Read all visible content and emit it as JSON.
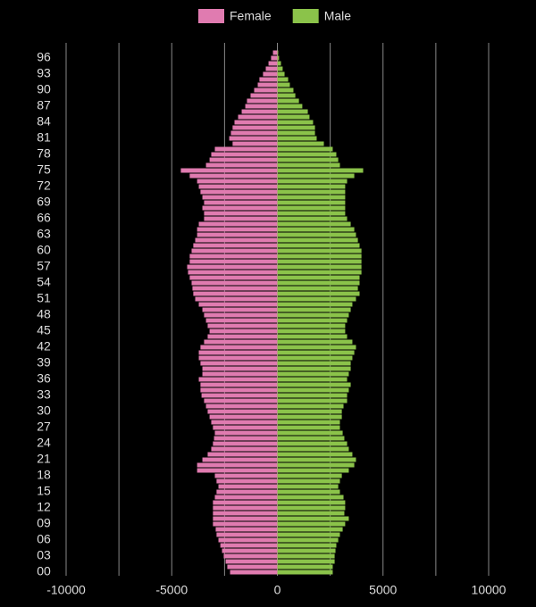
{
  "chart_data": {
    "type": "pyramid",
    "categories": [
      "00",
      null,
      null,
      "03",
      null,
      null,
      "06",
      null,
      null,
      "09",
      null,
      null,
      "12",
      null,
      null,
      "15",
      null,
      null,
      "18",
      null,
      null,
      "21",
      null,
      null,
      "24",
      null,
      null,
      "27",
      null,
      null,
      "30",
      null,
      null,
      "33",
      null,
      null,
      "36",
      null,
      null,
      "39",
      null,
      null,
      "42",
      null,
      null,
      "45",
      null,
      null,
      "48",
      null,
      null,
      "51",
      null,
      null,
      "54",
      null,
      null,
      "57",
      null,
      null,
      "60",
      null,
      null,
      "63",
      null,
      null,
      "66",
      null,
      null,
      "69",
      null,
      null,
      "72",
      null,
      null,
      "75",
      null,
      null,
      "78",
      null,
      null,
      "81",
      null,
      null,
      "84",
      null,
      null,
      "87",
      null,
      null,
      "90",
      null,
      null,
      "93",
      null,
      null,
      "96",
      null
    ],
    "series": [
      {
        "name": "Female",
        "color": "#e07bb0",
        "values": [
          -2240,
          -2370,
          -2450,
          -2540,
          -2620,
          -2700,
          -2790,
          -2880,
          -2920,
          -3050,
          -3050,
          -3050,
          -3050,
          -3050,
          -2960,
          -2880,
          -2790,
          -2880,
          -2960,
          -3800,
          -3800,
          -3550,
          -3300,
          -3130,
          -3050,
          -3000,
          -2960,
          -3050,
          -3130,
          -3210,
          -3300,
          -3380,
          -3470,
          -3590,
          -3640,
          -3640,
          -3720,
          -3550,
          -3550,
          -3640,
          -3720,
          -3720,
          -3640,
          -3470,
          -3300,
          -3210,
          -3300,
          -3380,
          -3470,
          -3550,
          -3720,
          -3890,
          -3980,
          -4020,
          -4060,
          -4150,
          -4230,
          -4270,
          -4150,
          -4150,
          -4060,
          -3980,
          -3890,
          -3800,
          -3800,
          -3720,
          -3470,
          -3470,
          -3550,
          -3470,
          -3550,
          -3640,
          -3720,
          -3800,
          -4150,
          -4570,
          -3380,
          -3210,
          -3130,
          -2960,
          -2120,
          -2280,
          -2200,
          -2120,
          -2030,
          -1860,
          -1690,
          -1520,
          -1440,
          -1270,
          -1100,
          -930,
          -850,
          -680,
          -550,
          -420,
          -300,
          -210
        ]
      },
      {
        "name": "Male",
        "color": "#8bc34a",
        "values": [
          2620,
          2620,
          2710,
          2710,
          2750,
          2790,
          2880,
          2960,
          3090,
          3210,
          3380,
          3170,
          3210,
          3210,
          3130,
          2960,
          2880,
          2960,
          3050,
          3380,
          3640,
          3720,
          3550,
          3380,
          3300,
          3170,
          3090,
          2960,
          2960,
          3050,
          3050,
          3130,
          3300,
          3300,
          3380,
          3470,
          3300,
          3380,
          3470,
          3470,
          3550,
          3640,
          3720,
          3550,
          3300,
          3210,
          3210,
          3300,
          3380,
          3470,
          3550,
          3720,
          3890,
          3810,
          3890,
          3890,
          3980,
          3980,
          3980,
          3980,
          3980,
          3890,
          3810,
          3720,
          3640,
          3470,
          3300,
          3210,
          3210,
          3210,
          3210,
          3210,
          3210,
          3300,
          3640,
          4060,
          2960,
          2880,
          2790,
          2620,
          2200,
          1860,
          1780,
          1780,
          1690,
          1520,
          1440,
          1180,
          1020,
          850,
          760,
          590,
          510,
          340,
          250,
          170,
          80,
          40
        ]
      }
    ],
    "xlim": [
      -10000,
      10000
    ],
    "xticks": [
      -10000,
      -5000,
      0,
      5000,
      10000
    ],
    "grid": true
  }
}
